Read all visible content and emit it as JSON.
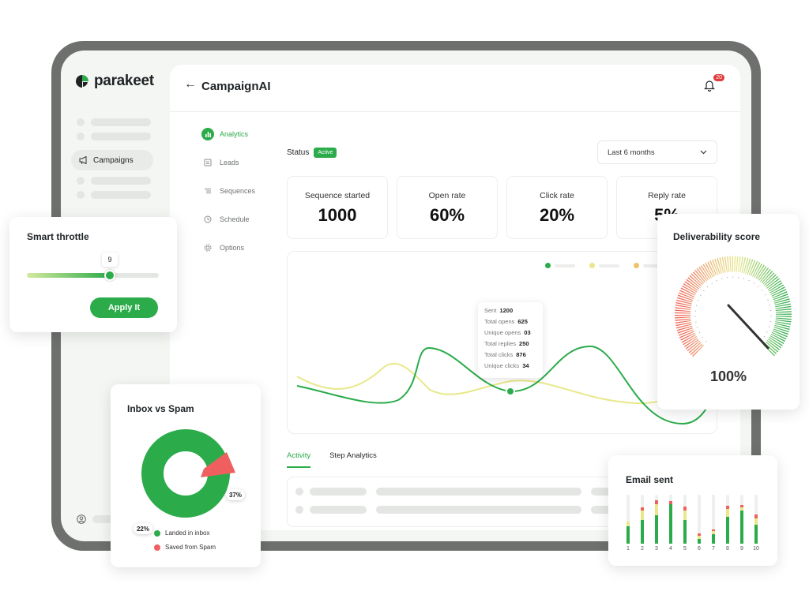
{
  "brand": {
    "name": "parakeet"
  },
  "sidebar": {
    "active_item": "Campaigns"
  },
  "header": {
    "title": "CampaignAI",
    "notification_count": "20"
  },
  "submenu": [
    {
      "label": "Analytics",
      "icon": "bar-chart-icon",
      "active": true
    },
    {
      "label": "Leads",
      "icon": "id-card-icon",
      "active": false
    },
    {
      "label": "Sequences",
      "icon": "list-icon",
      "active": false
    },
    {
      "label": "Schedule",
      "icon": "clock-icon",
      "active": false
    },
    {
      "label": "Options",
      "icon": "gear-icon",
      "active": false
    }
  ],
  "status": {
    "label": "Status",
    "value": "Active"
  },
  "date_range": {
    "selected": "Last 6 months"
  },
  "stats": [
    {
      "label": "Sequence started",
      "value": "1000"
    },
    {
      "label": "Open rate",
      "value": "60%"
    },
    {
      "label": "Click rate",
      "value": "20%"
    },
    {
      "label": "Reply rate",
      "value": "5%"
    }
  ],
  "tooltip": [
    {
      "label": "Sent",
      "value": "1200"
    },
    {
      "label": "Total opens",
      "value": "625"
    },
    {
      "label": "Unique opens",
      "value": "03"
    },
    {
      "label": "Total replies",
      "value": "250"
    },
    {
      "label": "Total clicks",
      "value": "876"
    },
    {
      "label": "Unique clicks",
      "value": "34"
    }
  ],
  "tabs": [
    {
      "label": "Activity",
      "active": true
    },
    {
      "label": "Step Analytics",
      "active": false
    }
  ],
  "smart_throttle": {
    "title": "Smart throttle",
    "value": 9,
    "fill_fraction": 0.63,
    "button": "Apply It"
  },
  "inbox_vs_spam": {
    "title": "Inbox vs Spam",
    "legend": [
      {
        "label": "Landed in inbox",
        "color": "#2bab4a"
      },
      {
        "label": "Saved from Spam",
        "color": "#ef5f5f"
      }
    ],
    "labels": {
      "inbox_pct": "22%",
      "spam_pct": "37%"
    }
  },
  "deliverability": {
    "title": "Deliverability score",
    "value": "100%"
  },
  "email_sent": {
    "title": "Email sent",
    "categories": [
      "1",
      "2",
      "3",
      "4",
      "5",
      "6",
      "7",
      "8",
      "9",
      "10"
    ]
  },
  "colors": {
    "accent": "#2bab4a",
    "danger": "#ef5f5f",
    "yellow": "#e8e88a"
  }
}
